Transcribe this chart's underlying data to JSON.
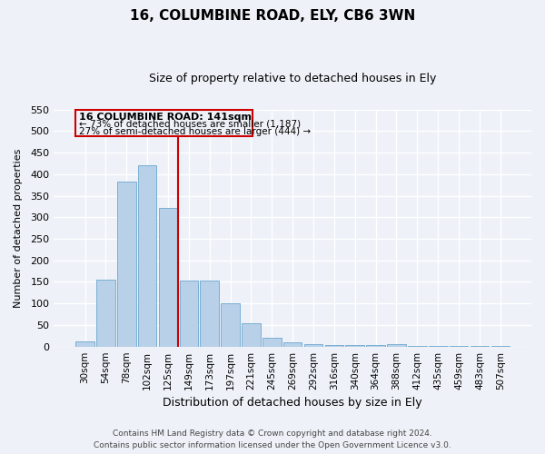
{
  "title": "16, COLUMBINE ROAD, ELY, CB6 3WN",
  "subtitle": "Size of property relative to detached houses in Ely",
  "xlabel": "Distribution of detached houses by size in Ely",
  "ylabel": "Number of detached properties",
  "bar_color": "#b8d0e8",
  "bar_edge_color": "#7aafd4",
  "categories": [
    "30sqm",
    "54sqm",
    "78sqm",
    "102sqm",
    "125sqm",
    "149sqm",
    "173sqm",
    "197sqm",
    "221sqm",
    "245sqm",
    "269sqm",
    "292sqm",
    "316sqm",
    "340sqm",
    "364sqm",
    "388sqm",
    "412sqm",
    "435sqm",
    "459sqm",
    "483sqm",
    "507sqm"
  ],
  "values": [
    12,
    155,
    383,
    420,
    322,
    153,
    153,
    100,
    55,
    20,
    10,
    5,
    4,
    4,
    4,
    5,
    2,
    2,
    2,
    2,
    2
  ],
  "ylim": [
    0,
    550
  ],
  "yticks": [
    0,
    50,
    100,
    150,
    200,
    250,
    300,
    350,
    400,
    450,
    500,
    550
  ],
  "vline_x_index": 4.5,
  "vline_color": "#cc0000",
  "annotation_title": "16 COLUMBINE ROAD: 141sqm",
  "annotation_line1": "← 73% of detached houses are smaller (1,187)",
  "annotation_line2": "27% of semi-detached houses are larger (444) →",
  "annotation_box_color": "#cc0000",
  "footer_line1": "Contains HM Land Registry data © Crown copyright and database right 2024.",
  "footer_line2": "Contains public sector information licensed under the Open Government Licence v3.0.",
  "bg_color": "#eef2f8",
  "grid_color": "#ffffff"
}
